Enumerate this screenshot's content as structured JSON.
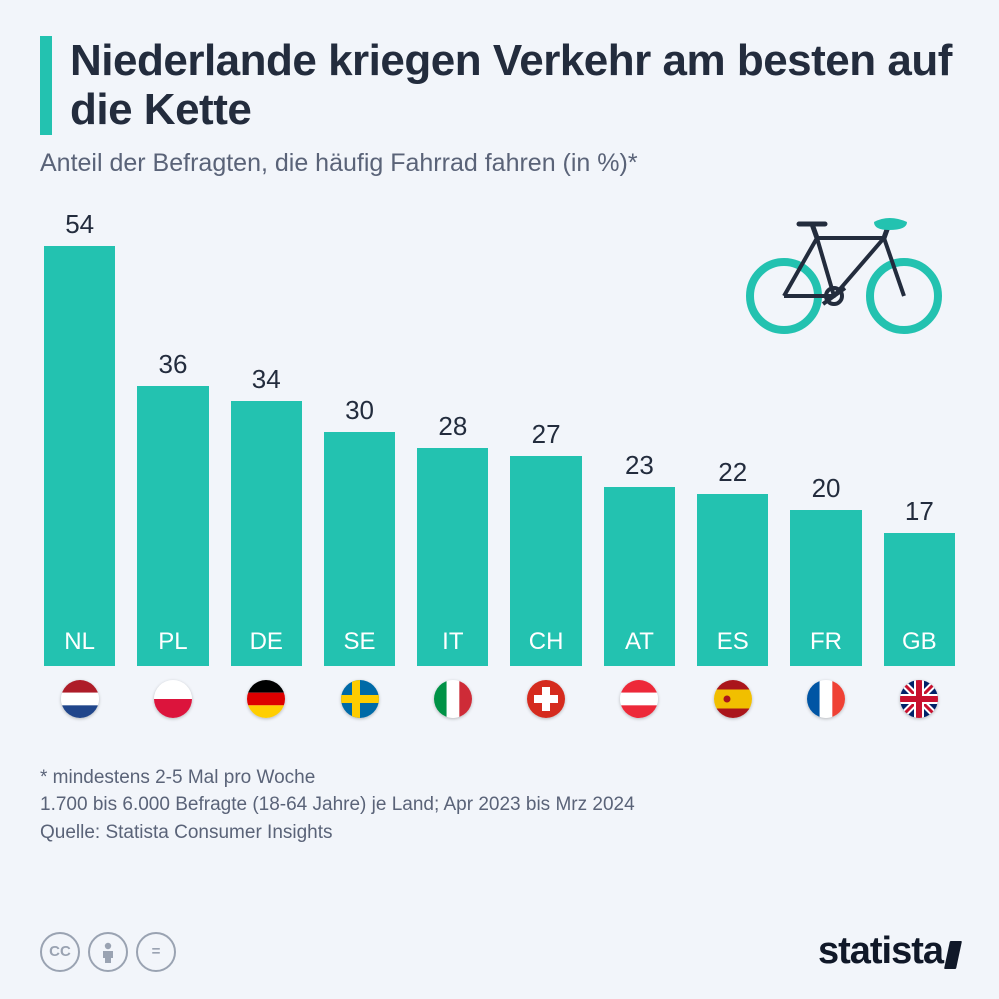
{
  "title": "Niederlande kriegen Verkehr am besten auf die Kette",
  "subtitle": "Anteil der Befragten, die häufig Fahrrad fahren (in %)*",
  "chart": {
    "type": "bar",
    "bar_color": "#23c2b0",
    "value_fontsize": 26,
    "label_fontsize": 24,
    "label_color": "#ffffff",
    "background_color": "#f2f5fa",
    "ymax": 54,
    "bars": [
      {
        "label": "NL",
        "value": 54,
        "flag": "nl"
      },
      {
        "label": "PL",
        "value": 36,
        "flag": "pl"
      },
      {
        "label": "DE",
        "value": 34,
        "flag": "de"
      },
      {
        "label": "SE",
        "value": 30,
        "flag": "se"
      },
      {
        "label": "IT",
        "value": 28,
        "flag": "it"
      },
      {
        "label": "CH",
        "value": 27,
        "flag": "ch"
      },
      {
        "label": "AT",
        "value": 23,
        "flag": "at"
      },
      {
        "label": "ES",
        "value": 22,
        "flag": "es"
      },
      {
        "label": "FR",
        "value": 20,
        "flag": "fr"
      },
      {
        "label": "GB",
        "value": 17,
        "flag": "gb"
      }
    ]
  },
  "bike_icon": {
    "frame_color": "#232c3d",
    "wheel_color": "#23c2b0",
    "seat_color": "#23c2b0"
  },
  "footnote1": "* mindestens 2-5 Mal pro Woche",
  "footnote2": "1.700 bis 6.000 Befragte (18-64 Jahre) je Land; Apr 2023 bis Mrz 2024",
  "source": "Quelle: Statista Consumer Insights",
  "brand": "statista",
  "cc_badges": [
    "cc",
    "by",
    "nd"
  ]
}
